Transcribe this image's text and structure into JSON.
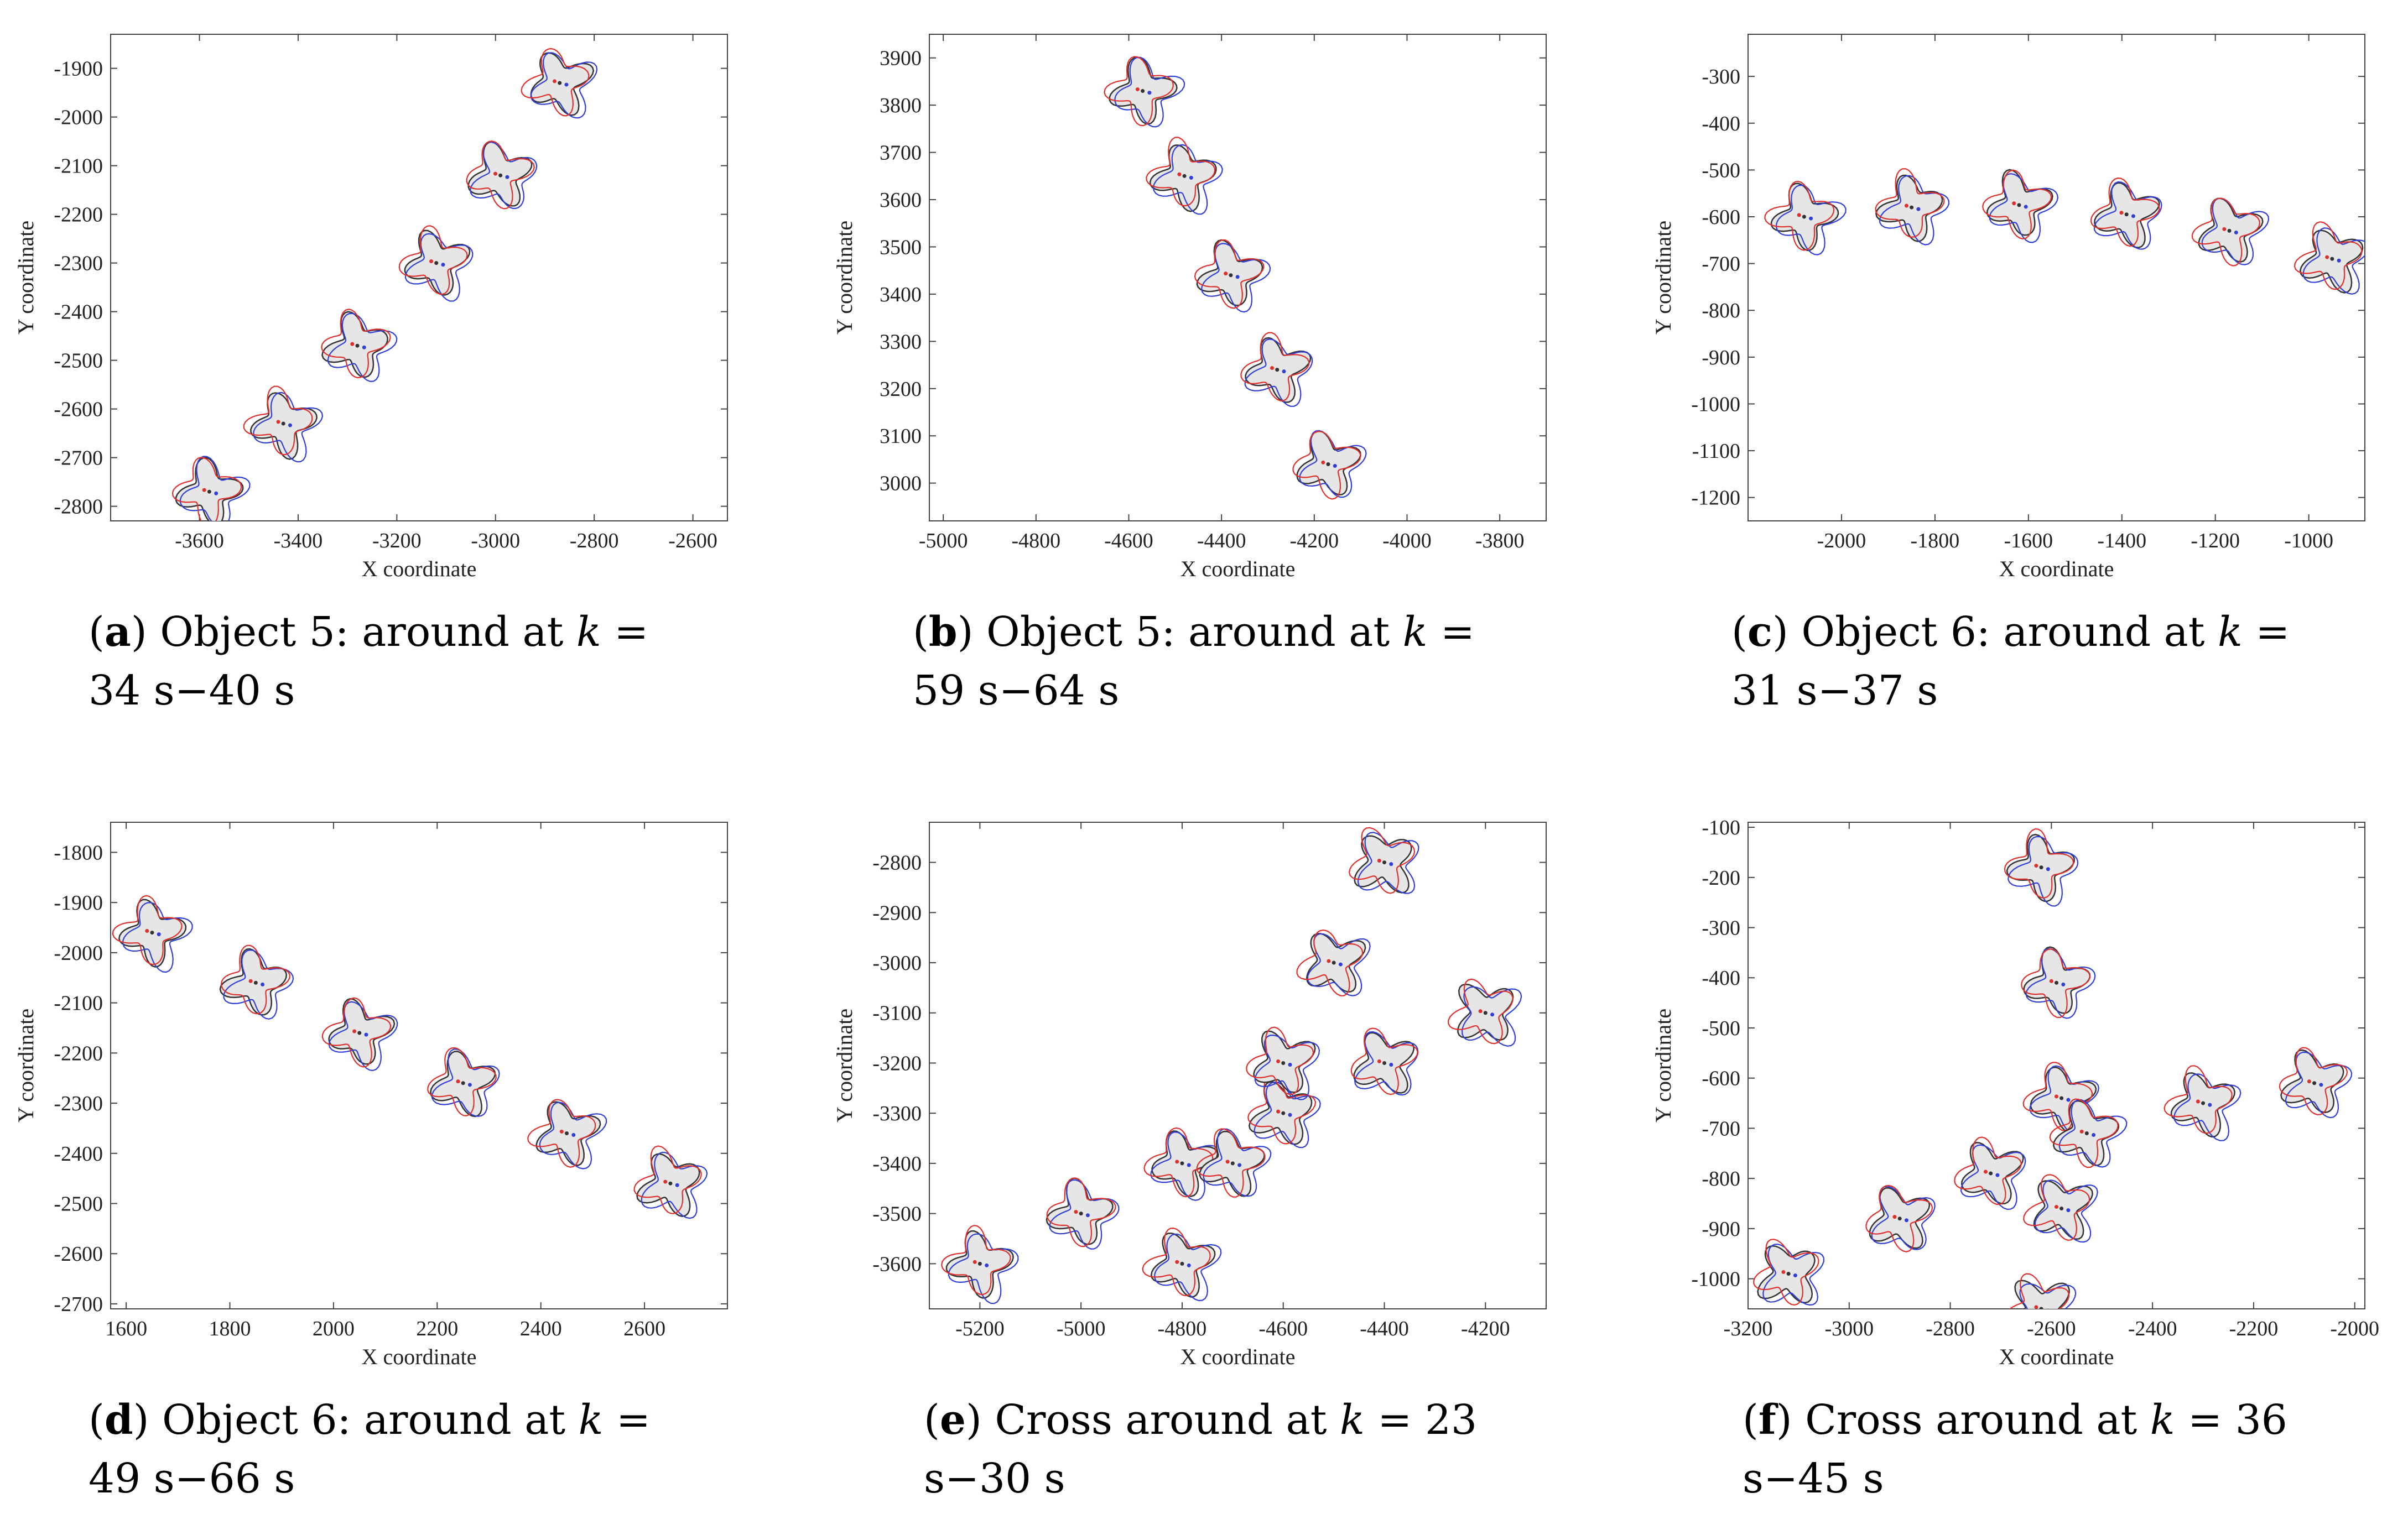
{
  "colors": {
    "shape_fill": "#e6e6e6",
    "truth": "#333333",
    "estimate_blue": "#2f3fd8",
    "estimate_red": "#e0302c",
    "axis": "#444444"
  },
  "chart_data": [
    {
      "id": "a",
      "type": "scatter",
      "xlabel": "X coordinate",
      "ylabel": "Y coordinate",
      "xlim": [
        -3780,
        -2530
      ],
      "ylim": [
        -2830,
        -1830
      ],
      "xticks": [
        -3600,
        -3400,
        -3200,
        -3000,
        -2800,
        -2600
      ],
      "yticks": [
        -2800,
        -2700,
        -2600,
        -2500,
        -2400,
        -2300,
        -2200,
        -2100,
        -2000,
        -1900
      ],
      "objects": [
        [
          -3580,
          -2770
        ],
        [
          -3430,
          -2630
        ],
        [
          -3280,
          -2470
        ],
        [
          -3120,
          -2300
        ],
        [
          -2990,
          -2120
        ],
        [
          -2870,
          -1930
        ]
      ],
      "caption": {
        "letter": "a",
        "text1": " Object 5:  around at ",
        "var": "k",
        "text2": " = ",
        "text3": "34 s−40 s"
      }
    },
    {
      "id": "b",
      "type": "scatter",
      "xlabel": "X coordinate",
      "ylabel": "Y coordinate",
      "xlim": [
        -5030,
        -3700
      ],
      "ylim": [
        2920,
        3950
      ],
      "xticks": [
        -5000,
        -4800,
        -4600,
        -4400,
        -4200,
        -4000,
        -3800
      ],
      "yticks": [
        3000,
        3100,
        3200,
        3300,
        3400,
        3500,
        3600,
        3700,
        3800,
        3900
      ],
      "objects": [
        [
          -4570,
          3830
        ],
        [
          -4480,
          3650
        ],
        [
          -4380,
          3440
        ],
        [
          -4280,
          3240
        ],
        [
          -4170,
          3040
        ]
      ],
      "caption": {
        "letter": "b",
        "text1": " Object 5:  around at ",
        "var": "k",
        "text2": " = ",
        "text3": "59 s−64 s"
      }
    },
    {
      "id": "c",
      "type": "scatter",
      "xlabel": "X coordinate",
      "ylabel": "Y coordinate",
      "xlim": [
        -2200,
        -880
      ],
      "ylim": [
        -1250,
        -210
      ],
      "xticks": [
        -2000,
        -1800,
        -1600,
        -1400,
        -1200,
        -1000
      ],
      "yticks": [
        -1200,
        -1100,
        -1000,
        -900,
        -800,
        -700,
        -600,
        -500,
        -400,
        -300
      ],
      "objects": [
        [
          -2080,
          -600
        ],
        [
          -1850,
          -580
        ],
        [
          -1620,
          -575
        ],
        [
          -1390,
          -595
        ],
        [
          -1170,
          -630
        ],
        [
          -950,
          -690
        ]
      ],
      "caption": {
        "letter": "c",
        "text1": " Object 6:  around at ",
        "var": "k",
        "text2": " = ",
        "text3": "31 s−37 s"
      }
    },
    {
      "id": "d",
      "type": "scatter",
      "xlabel": "X coordinate",
      "ylabel": "Y coordinate",
      "xlim": [
        1570,
        2760
      ],
      "ylim": [
        -2710,
        -1740
      ],
      "xticks": [
        1600,
        1800,
        2000,
        2200,
        2400,
        2600
      ],
      "yticks": [
        -2700,
        -2600,
        -2500,
        -2400,
        -2300,
        -2200,
        -2100,
        -2000,
        -1900,
        -1800
      ],
      "objects": [
        [
          1650,
          -1960
        ],
        [
          1850,
          -2060
        ],
        [
          2050,
          -2160
        ],
        [
          2250,
          -2260
        ],
        [
          2450,
          -2360
        ],
        [
          2650,
          -2460
        ]
      ],
      "caption": {
        "letter": "d",
        "text1": " Object 6:  around at ",
        "var": "k",
        "text2": " = ",
        "text3": "49 s−66 s"
      }
    },
    {
      "id": "e",
      "type": "scatter",
      "xlabel": "X coordinate",
      "ylabel": "Y coordinate",
      "xlim": [
        -5300,
        -4080
      ],
      "ylim": [
        -3690,
        -2720
      ],
      "xticks": [
        -5200,
        -5000,
        -4800,
        -4600,
        -4400,
        -4200
      ],
      "yticks": [
        -3600,
        -3500,
        -3400,
        -3300,
        -3200,
        -3100,
        -3000,
        -2900,
        -2800
      ],
      "objects": [
        [
          -5200,
          -3600
        ],
        [
          -5000,
          -3500
        ],
        [
          -4800,
          -3400
        ],
        [
          -4700,
          -3400
        ],
        [
          -4800,
          -3600
        ],
        [
          -4600,
          -3300
        ],
        [
          -4600,
          -3200
        ],
        [
          -4400,
          -3200
        ],
        [
          -4500,
          -3000
        ],
        [
          -4400,
          -2800
        ],
        [
          -4200,
          -3100
        ]
      ],
      "caption": {
        "letter": "e",
        "text1": " Cross around at ",
        "var": "k",
        "text2": " = ",
        "text3": "23 s−30 s"
      }
    },
    {
      "id": "f",
      "type": "scatter",
      "xlabel": "X coordinate",
      "ylabel": "Y coordinate",
      "xlim": [
        -3200,
        -1980
      ],
      "ylim": [
        -1060,
        -90
      ],
      "xticks": [
        -3200,
        -3000,
        -2800,
        -2600,
        -2400,
        -2200,
        -2000
      ],
      "yticks": [
        -1000,
        -900,
        -800,
        -700,
        -600,
        -500,
        -400,
        -300,
        -200,
        -100
      ],
      "objects": [
        [
          -2620,
          -180
        ],
        [
          -2590,
          -410
        ],
        [
          -2580,
          -640
        ],
        [
          -2530,
          -710
        ],
        [
          -2300,
          -650
        ],
        [
          -2080,
          -610
        ],
        [
          -2720,
          -790
        ],
        [
          -2900,
          -880
        ],
        [
          -2580,
          -860
        ],
        [
          -3120,
          -990
        ],
        [
          -2620,
          -1060
        ]
      ],
      "caption": {
        "letter": "f",
        "text1": " Cross around at ",
        "var": "k",
        "text2": " = ",
        "text3": "36 s−45 s"
      }
    }
  ]
}
